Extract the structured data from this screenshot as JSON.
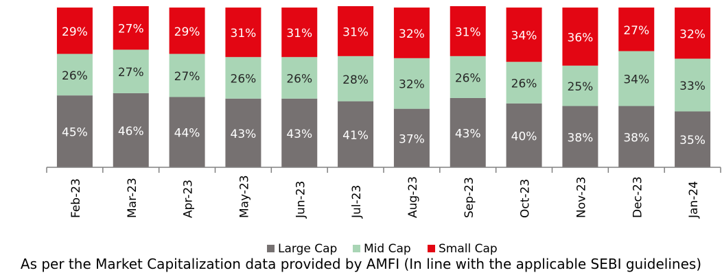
{
  "chart_data": {
    "type": "bar",
    "stacked": true,
    "normalized": true,
    "categories": [
      "Feb-23",
      "Mar-23",
      "Apr-23",
      "May-23",
      "Jun-23",
      "Jul-23",
      "Aug-23",
      "Sep-23",
      "Oct-23",
      "Nov-23",
      "Dec-23",
      "Jan-24"
    ],
    "series": [
      {
        "name": "Large Cap",
        "color": "#767171",
        "values": [
          45,
          46,
          44,
          43,
          43,
          41,
          37,
          43,
          40,
          38,
          38,
          35
        ]
      },
      {
        "name": "Mid Cap",
        "color": "#a9d5b5",
        "values": [
          26,
          27,
          27,
          26,
          26,
          28,
          32,
          26,
          26,
          25,
          34,
          33
        ]
      },
      {
        "name": "Small Cap",
        "color": "#e30613",
        "values": [
          29,
          27,
          29,
          31,
          31,
          31,
          32,
          31,
          34,
          36,
          27,
          32
        ]
      }
    ],
    "value_suffix": "%",
    "legend_position": "bottom",
    "grid": false
  },
  "footnote": "As per the Market Capitalization data provided by AMFI (In line with the applicable SEBI guidelines)"
}
